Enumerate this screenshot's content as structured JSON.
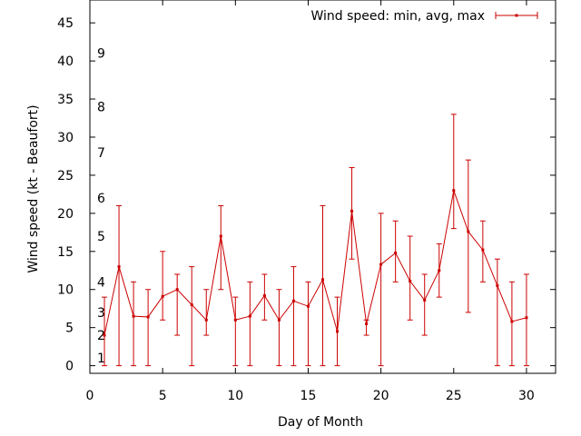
{
  "chart_data": {
    "type": "line",
    "xlabel": "Day of Month",
    "ylabel": "Wind speed (kt - Beaufort)",
    "xlim": [
      0,
      32
    ],
    "ylim": [
      -1,
      48
    ],
    "x_ticks": [
      0,
      5,
      10,
      15,
      20,
      25,
      30
    ],
    "y_ticks": [
      0,
      5,
      10,
      15,
      20,
      25,
      30,
      35,
      40,
      45
    ],
    "x_tick_labels": [
      "0",
      "5",
      "10",
      "15",
      "20",
      "25",
      "30"
    ],
    "y_tick_labels": [
      "0",
      "5",
      "10",
      "15",
      "20",
      "25",
      "30",
      "35",
      "40",
      "45"
    ],
    "beaufort_marks": [
      {
        "label": "1",
        "value": 1
      },
      {
        "label": "2",
        "value": 4
      },
      {
        "label": "3",
        "value": 7
      },
      {
        "label": "4",
        "value": 11
      },
      {
        "label": "5",
        "value": 17
      },
      {
        "label": "6",
        "value": 22
      },
      {
        "label": "7",
        "value": 28
      },
      {
        "label": "8",
        "value": 34
      },
      {
        "label": "9",
        "value": 41
      }
    ],
    "legend_position": "top-right",
    "grid": false,
    "series": [
      {
        "name": "Wind speed: min, avg, max",
        "color": "#cc0000",
        "x": [
          1,
          2,
          3,
          4,
          5,
          6,
          7,
          8,
          9,
          10,
          11,
          12,
          13,
          14,
          15,
          16,
          17,
          18,
          19,
          20,
          21,
          22,
          23,
          24,
          25,
          26,
          27,
          28,
          29,
          30
        ],
        "avg": [
          4,
          13,
          6.5,
          6.4,
          9.1,
          10,
          8,
          6,
          17,
          6,
          6.5,
          9.2,
          6,
          8.5,
          7.8,
          11.3,
          4.5,
          20.3,
          5.5,
          13.3,
          14.8,
          11.1,
          8.6,
          12.5,
          23,
          17.6,
          15.2,
          10.5,
          5.8,
          6.3
        ],
        "min": [
          0,
          0,
          0,
          0,
          6,
          4,
          0,
          4,
          10,
          0,
          0,
          6,
          0,
          0,
          0,
          0,
          0,
          14,
          4,
          0,
          11,
          6,
          4,
          9,
          18,
          7,
          11,
          0,
          0,
          0
        ],
        "max": [
          9,
          21,
          11,
          10,
          15,
          12,
          13,
          10,
          21,
          9,
          11,
          12,
          10,
          13,
          11,
          21,
          9,
          26,
          6,
          20,
          19,
          17,
          12,
          16,
          33,
          27,
          19,
          14,
          11,
          12
        ]
      }
    ]
  }
}
